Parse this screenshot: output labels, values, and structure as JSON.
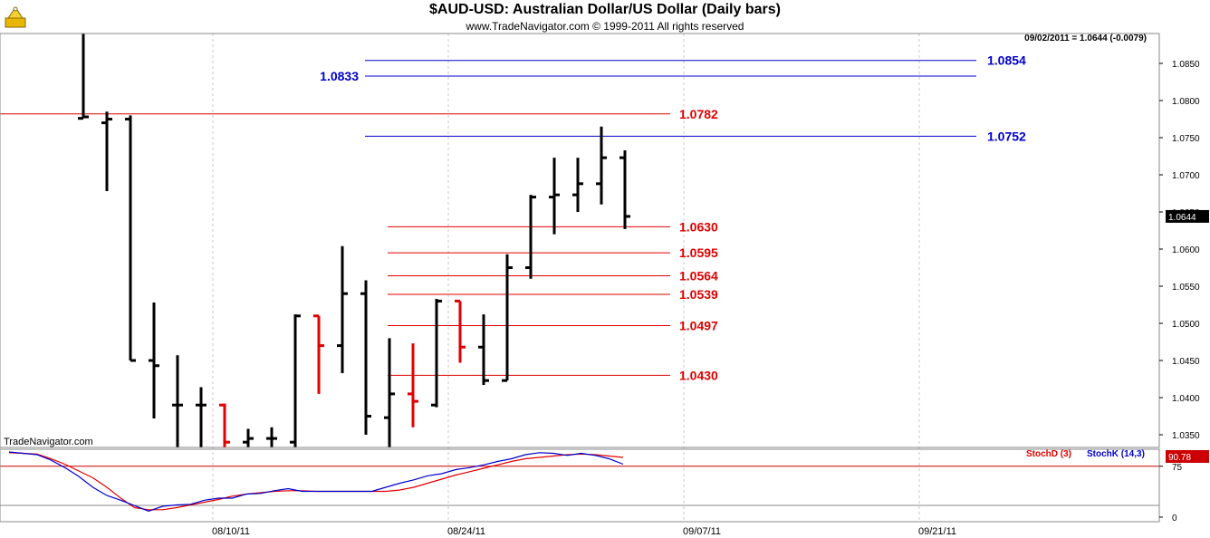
{
  "header": {
    "title": "$AUD-USD:  Australian Dollar/US Dollar  (Daily bars)",
    "copyright": "www.TradeNavigator.com © 1999-2011 All rights reserved",
    "last_info": "09/02/2011 = 1.0644 (-0.0079)",
    "watermark": "TradeNavigator.com"
  },
  "colors": {
    "up": "#000000",
    "down": "#e00000",
    "blue_level": "#0000cc",
    "red_level": "#e00000",
    "grid": "#c8c8c8"
  },
  "chart_data": [
    {
      "type": "ohlc",
      "title": "$AUD-USD:  Australian Dollar/US Dollar  (Daily bars)",
      "x_ticks": [
        "08/10/11",
        "08/24/11",
        "09/07/11",
        "09/21/11"
      ],
      "y_ticks": [
        "1.0350",
        "1.0400",
        "1.0450",
        "1.0500",
        "1.0550",
        "1.0600",
        "1.0650",
        "1.0700",
        "1.0750",
        "1.0800",
        "1.0850"
      ],
      "last_price_label": "1.0644",
      "bars": [
        {
          "o": 1.0776,
          "h": 1.089,
          "l": 1.0776,
          "c": 1.0778,
          "color": "black"
        },
        {
          "o": 1.077,
          "h": 1.0785,
          "l": 1.0678,
          "c": 1.0775,
          "color": "black"
        },
        {
          "o": 1.0775,
          "h": 1.078,
          "l": 1.045,
          "c": 1.045,
          "color": "black"
        },
        {
          "o": 1.045,
          "h": 1.0528,
          "l": 1.0372,
          "c": 1.0443,
          "color": "black"
        },
        {
          "o": 1.039,
          "h": 1.0457,
          "l": 1.033,
          "c": 1.039,
          "color": "black"
        },
        {
          "o": 1.039,
          "h": 1.0414,
          "l": 1.033,
          "c": 1.039,
          "color": "black"
        },
        {
          "o": 1.039,
          "h": 1.0392,
          "l": 1.033,
          "c": 1.034,
          "color": "red"
        },
        {
          "o": 1.034,
          "h": 1.0358,
          "l": 1.033,
          "c": 1.0345,
          "color": "black"
        },
        {
          "o": 1.0345,
          "h": 1.036,
          "l": 1.033,
          "c": 1.0345,
          "color": "black"
        },
        {
          "o": 1.034,
          "h": 1.0512,
          "l": 1.033,
          "c": 1.051,
          "color": "black"
        },
        {
          "o": 1.051,
          "h": 1.051,
          "l": 1.0405,
          "c": 1.047,
          "color": "red"
        },
        {
          "o": 1.047,
          "h": 1.0604,
          "l": 1.0433,
          "c": 1.054,
          "color": "black"
        },
        {
          "o": 1.054,
          "h": 1.0558,
          "l": 1.035,
          "c": 1.0375,
          "color": "black"
        },
        {
          "o": 1.0373,
          "h": 1.048,
          "l": 1.033,
          "c": 1.0405,
          "color": "black"
        },
        {
          "o": 1.0405,
          "h": 1.0473,
          "l": 1.036,
          "c": 1.0395,
          "color": "red"
        },
        {
          "o": 1.039,
          "h": 1.0533,
          "l": 1.0387,
          "c": 1.053,
          "color": "black"
        },
        {
          "o": 1.053,
          "h": 1.053,
          "l": 1.0447,
          "c": 1.0468,
          "color": "red"
        },
        {
          "o": 1.0468,
          "h": 1.0512,
          "l": 1.0417,
          "c": 1.0423,
          "color": "black"
        },
        {
          "o": 1.0423,
          "h": 1.0593,
          "l": 1.0423,
          "c": 1.0575,
          "color": "black"
        },
        {
          "o": 1.0575,
          "h": 1.0673,
          "l": 1.056,
          "c": 1.067,
          "color": "black"
        },
        {
          "o": 1.067,
          "h": 1.0723,
          "l": 1.062,
          "c": 1.0673,
          "color": "black"
        },
        {
          "o": 1.0673,
          "h": 1.0723,
          "l": 1.065,
          "c": 1.0688,
          "color": "black"
        },
        {
          "o": 1.0688,
          "h": 1.0765,
          "l": 1.066,
          "c": 1.0723,
          "color": "black"
        },
        {
          "o": 1.0723,
          "h": 1.0733,
          "l": 1.0627,
          "c": 1.0644,
          "color": "black"
        }
      ],
      "levels": [
        {
          "value": 1.0854,
          "label": "1.0854",
          "color": "blue",
          "label_side": "right"
        },
        {
          "value": 1.0833,
          "label": "1.0833",
          "color": "blue",
          "label_side": "left"
        },
        {
          "value": 1.0782,
          "label": "1.0782",
          "color": "red",
          "label_side": "right"
        },
        {
          "value": 1.0752,
          "label": "1.0752",
          "color": "blue",
          "label_side": "right"
        },
        {
          "value": 1.063,
          "label": "1.0630",
          "color": "red",
          "label_side": "right"
        },
        {
          "value": 1.0595,
          "label": "1.0595",
          "color": "red",
          "label_side": "right"
        },
        {
          "value": 1.0564,
          "label": "1.0564",
          "color": "red",
          "label_side": "right"
        },
        {
          "value": 1.0539,
          "label": "1.0539",
          "color": "red",
          "label_side": "right"
        },
        {
          "value": 1.0497,
          "label": "1.0497",
          "color": "red",
          "label_side": "right"
        },
        {
          "value": 1.043,
          "label": "1.0430",
          "color": "red",
          "label_side": "right"
        }
      ]
    },
    {
      "type": "line",
      "y_ticks": [
        "0",
        "75"
      ],
      "ylim": [
        0,
        100
      ],
      "reference_line": 75,
      "last_value_label": "90.78",
      "series": [
        {
          "name": "StochD (3)",
          "color": "red",
          "values": [
            95,
            94,
            93,
            86,
            78,
            68,
            58,
            44,
            28,
            14,
            11,
            11,
            14,
            18,
            22,
            26,
            31,
            34,
            36,
            38,
            39,
            39,
            38,
            38,
            38,
            38,
            38,
            38,
            40,
            44,
            50,
            56,
            62,
            67,
            72,
            77,
            82,
            86,
            88,
            90,
            92,
            93,
            92,
            90,
            88
          ]
        },
        {
          "name": "StochK (14,3)",
          "color": "blue",
          "values": [
            96,
            94,
            92,
            84,
            73,
            60,
            44,
            32,
            25,
            17,
            9,
            16,
            18,
            19,
            25,
            28,
            28,
            34,
            35,
            39,
            42,
            38,
            38,
            38,
            38,
            38,
            38,
            44,
            50,
            55,
            61,
            64,
            70,
            73,
            77,
            82,
            86,
            92,
            95,
            94,
            91,
            94,
            91,
            86,
            78
          ]
        }
      ]
    }
  ]
}
